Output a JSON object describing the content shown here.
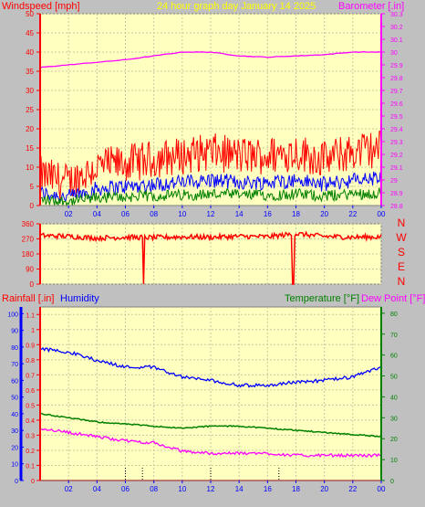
{
  "panel1": {
    "left_label": "Windspeed [mph]",
    "title": "24 hour graph day   January 14 2025",
    "right_label": "Barometer [.in]",
    "left_ticks": [
      "0",
      "5",
      "10",
      "15",
      "20",
      "25",
      "30",
      "35",
      "40",
      "45",
      "50"
    ],
    "right_ticks": [
      "28.8",
      "28.9",
      "29",
      "29.1",
      "29.2",
      "29.3",
      "29.4",
      "29.5",
      "29.6",
      "29.7",
      "29.8",
      "29.9",
      "30",
      "30.1",
      "30.2",
      "30.3"
    ],
    "x_ticks": [
      "02",
      "04",
      "06",
      "08",
      "10",
      "12",
      "14",
      "16",
      "18",
      "20",
      "22",
      "00"
    ],
    "colors": {
      "wind_gust": "#ff0000",
      "wind_avg": "#0000ff",
      "wind_low": "#008000",
      "barometer": "#ff00ff",
      "left_axis": "#ff0000",
      "right_axis": "#ff00ff",
      "bg": "#ffffc0"
    }
  },
  "panel2": {
    "ticks": [
      "0",
      "90",
      "180",
      "270",
      "360"
    ],
    "compass": [
      "N",
      "W",
      "S",
      "E",
      "N"
    ],
    "x_ticks": [
      "02",
      "04",
      "06",
      "08",
      "10",
      "12",
      "14",
      "16",
      "18",
      "20",
      "22",
      "00"
    ],
    "colors": {
      "direction": "#ff0000"
    }
  },
  "panel3": {
    "rain_label": "Rainfall [.in]",
    "humidity_label": "Humidity",
    "temp_label": "Temperature [°F]",
    "dew_label": "Dew Point [°F]",
    "rain_ticks": [
      "0",
      "0.1",
      "0.2",
      "0.3",
      "0.4",
      "0.5",
      "0.6",
      "0.7",
      "0.8",
      "0.9",
      "1",
      "1.1"
    ],
    "humidity_ticks": [
      "0",
      "10",
      "20",
      "30",
      "40",
      "50",
      "60",
      "70",
      "80",
      "90",
      "100"
    ],
    "temp_ticks": [
      "0",
      "10",
      "20",
      "30",
      "40",
      "50",
      "60",
      "70",
      "80"
    ],
    "x_ticks": [
      "02",
      "04",
      "06",
      "08",
      "10",
      "12",
      "14",
      "16",
      "18",
      "20",
      "22",
      "00"
    ],
    "colors": {
      "rain": "#ff0000",
      "humidity": "#0000ff",
      "temperature": "#008000",
      "dew": "#ff00ff"
    }
  },
  "chart_data": [
    {
      "type": "line",
      "title": "24 hour graph day   January 14 2025",
      "ylabel": "Windspeed [mph]",
      "y2label": "Barometer [.in]",
      "ylim": [
        0,
        50
      ],
      "y2lim": [
        28.8,
        30.3
      ],
      "x_hours": [
        0,
        2,
        4,
        6,
        8,
        10,
        12,
        14,
        16,
        18,
        20,
        22,
        24
      ],
      "series": [
        {
          "name": "Barometer [.in]",
          "axis": "right",
          "values": [
            29.88,
            29.9,
            29.92,
            29.94,
            29.97,
            30.0,
            30.0,
            29.97,
            29.96,
            29.97,
            29.98,
            30.0,
            30.0
          ]
        },
        {
          "name": "Windspeed [mph]",
          "axis": "left",
          "values": [
            6,
            4,
            8,
            9,
            10,
            11,
            12,
            11,
            11,
            12,
            10,
            12,
            13
          ]
        }
      ]
    },
    {
      "type": "line",
      "ylim": [
        0,
        360
      ],
      "x_hours": [
        0,
        2,
        4,
        6,
        8,
        10,
        12,
        14,
        16,
        18,
        20,
        22,
        24
      ],
      "series": [
        {
          "values": [
            290,
            285,
            275,
            280,
            278,
            282,
            280,
            285,
            283,
            300,
            285,
            280,
            282
          ]
        }
      ]
    },
    {
      "type": "line",
      "ylabel": "Rainfall [.in]",
      "y2label": "Temperature [°F]",
      "ylim": [
        0,
        1.1
      ],
      "y2lim": [
        0,
        80
      ],
      "x_hours": [
        0,
        2,
        4,
        6,
        8,
        10,
        12,
        14,
        16,
        18,
        20,
        22,
        24
      ],
      "series": [
        {
          "name": "Humidity",
          "axis": "humidity",
          "values": [
            79,
            77,
            72,
            68,
            68,
            62,
            60,
            57,
            57,
            59,
            60,
            62,
            68
          ]
        },
        {
          "name": "Temperature [°F]",
          "axis": "right",
          "values": [
            32,
            30,
            28,
            27,
            26,
            25,
            26,
            26,
            25,
            24,
            23,
            22,
            21
          ]
        },
        {
          "name": "Dew Point [°F]",
          "axis": "right",
          "values": [
            25,
            23,
            21,
            19,
            18,
            14,
            13,
            13,
            13,
            12,
            12,
            12,
            12
          ]
        },
        {
          "name": "Rainfall [.in]",
          "axis": "left",
          "values": [
            0,
            0,
            0,
            0,
            0,
            0,
            0,
            0,
            0,
            0,
            0,
            0,
            0
          ]
        }
      ]
    }
  ]
}
